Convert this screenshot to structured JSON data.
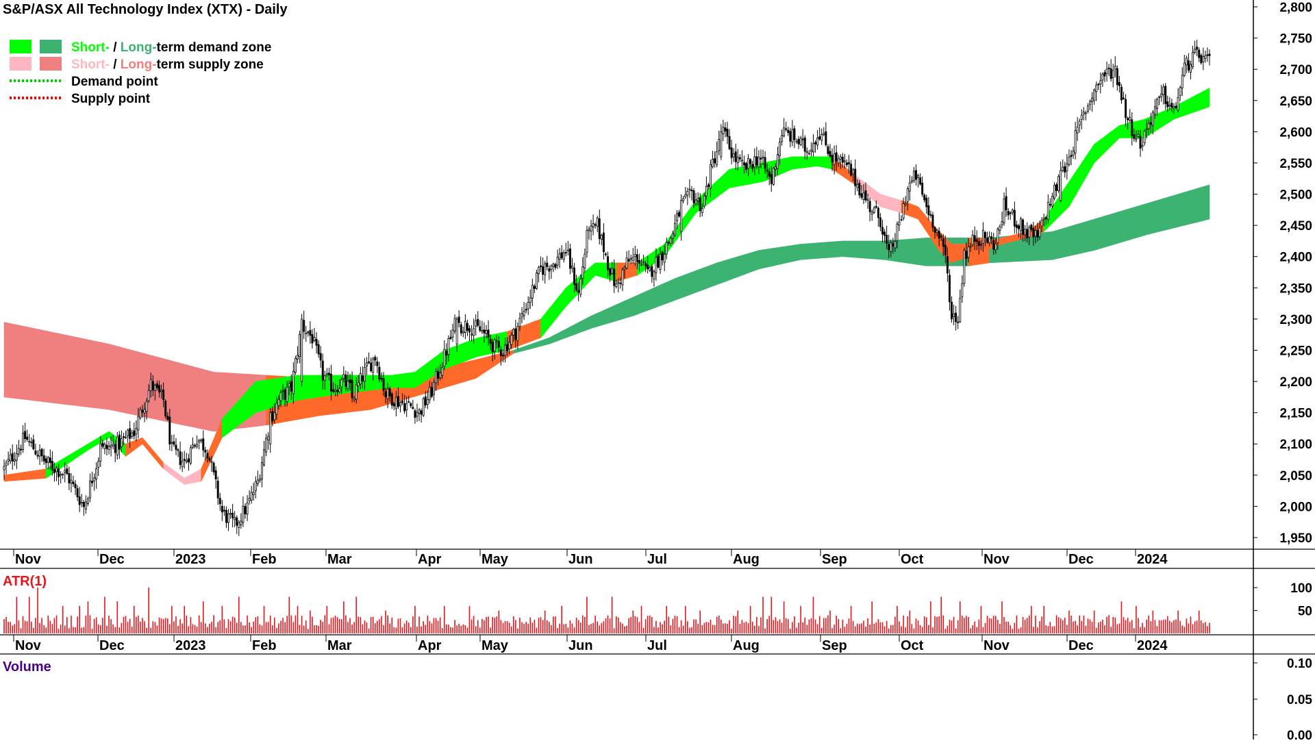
{
  "title": "S&P/ASX All Technology Index (XTX) - Daily",
  "legend": [
    {
      "label_a": "Short-",
      "sep": " / ",
      "label_b": "Long-",
      "rest": "term demand zone",
      "color_a": "#00ff00",
      "color_b": "#3cb371",
      "style": "swatch"
    },
    {
      "label_a": "Short-",
      "sep": " / ",
      "label_b": "Long-",
      "rest": "term supply zone",
      "color_a": "#ffb6c1",
      "color_b": "#f08080",
      "style": "swatch"
    },
    {
      "label": "Demand point",
      "color": "#00cc00",
      "style": "dotted"
    },
    {
      "label": "Supply point",
      "color": "#ff0000",
      "style": "dotted"
    }
  ],
  "colors": {
    "short_demand": "#00ff00",
    "long_demand": "#3cb371",
    "short_supply": "#ffb6c1",
    "long_supply": "#f08080",
    "overlap": "#ff6a2a",
    "atr": "#e8141a",
    "volume_label": "#4b0082",
    "atr_label": "#e8141a"
  },
  "chart_data": [
    {
      "type": "candlestick",
      "title": "S&P/ASX All Technology Index (XTX) - Daily",
      "x_ticks": [
        "Nov",
        "Dec",
        "2023",
        "Feb",
        "Mar",
        "Apr",
        "May",
        "Jun",
        "Jul",
        "Aug",
        "Sep",
        "Oct",
        "Nov",
        "Dec",
        "2024"
      ],
      "y_ticks": [
        1950,
        2000,
        2050,
        2100,
        2150,
        2200,
        2250,
        2300,
        2350,
        2400,
        2450,
        2500,
        2550,
        2600,
        2650,
        2700,
        2750,
        2800
      ],
      "y_tick_labels": [
        "1,950",
        "2,000",
        "2,050",
        "2,100",
        "2,150",
        "2,200",
        "2,250",
        "2,300",
        "2,350",
        "2,400",
        "2,450",
        "2,500",
        "2,550",
        "2,600",
        "2,650",
        "2,700",
        "2,750",
        "2,800"
      ],
      "ylim": [
        1930,
        2820
      ],
      "close_path": [
        [
          0,
          2060
        ],
        [
          10,
          2110
        ],
        [
          20,
          2070
        ],
        [
          30,
          2050
        ],
        [
          38,
          2000
        ],
        [
          46,
          2090
        ],
        [
          55,
          2100
        ],
        [
          62,
          2120
        ],
        [
          70,
          2195
        ],
        [
          76,
          2170
        ],
        [
          80,
          2090
        ],
        [
          86,
          2070
        ],
        [
          92,
          2110
        ],
        [
          97,
          2090
        ],
        [
          104,
          1990
        ],
        [
          110,
          1970
        ],
        [
          116,
          2000
        ],
        [
          121,
          2040
        ],
        [
          127,
          2140
        ],
        [
          131,
          2170
        ],
        [
          137,
          2190
        ],
        [
          142,
          2290
        ],
        [
          147,
          2270
        ],
        [
          152,
          2210
        ],
        [
          157,
          2190
        ],
        [
          162,
          2200
        ],
        [
          167,
          2180
        ],
        [
          172,
          2215
        ],
        [
          177,
          2240
        ],
        [
          182,
          2180
        ],
        [
          187,
          2170
        ],
        [
          194,
          2160
        ],
        [
          198,
          2150
        ],
        [
          204,
          2185
        ],
        [
          210,
          2240
        ],
        [
          215,
          2290
        ],
        [
          222,
          2290
        ],
        [
          228,
          2280
        ],
        [
          234,
          2255
        ],
        [
          238,
          2250
        ],
        [
          244,
          2280
        ],
        [
          250,
          2330
        ],
        [
          256,
          2380
        ],
        [
          262,
          2390
        ],
        [
          268,
          2410
        ],
        [
          274,
          2340
        ],
        [
          278,
          2430
        ],
        [
          283,
          2450
        ],
        [
          288,
          2390
        ],
        [
          292,
          2350
        ],
        [
          297,
          2390
        ],
        [
          302,
          2400
        ],
        [
          307,
          2370
        ],
        [
          313,
          2400
        ],
        [
          318,
          2430
        ],
        [
          323,
          2480
        ],
        [
          328,
          2500
        ],
        [
          333,
          2480
        ],
        [
          338,
          2550
        ],
        [
          343,
          2600
        ],
        [
          348,
          2560
        ],
        [
          353,
          2540
        ],
        [
          360,
          2560
        ],
        [
          366,
          2520
        ],
        [
          371,
          2600
        ],
        [
          377,
          2590
        ],
        [
          383,
          2570
        ],
        [
          389,
          2600
        ],
        [
          395,
          2560
        ],
        [
          403,
          2540
        ],
        [
          408,
          2510
        ],
        [
          413,
          2480
        ],
        [
          418,
          2460
        ],
        [
          422,
          2400
        ],
        [
          427,
          2450
        ],
        [
          431,
          2510
        ],
        [
          435,
          2530
        ],
        [
          440,
          2480
        ],
        [
          444,
          2450
        ],
        [
          449,
          2400
        ],
        [
          452,
          2310
        ],
        [
          455,
          2300
        ],
        [
          458,
          2400
        ],
        [
          463,
          2430
        ],
        [
          468,
          2430
        ],
        [
          473,
          2420
        ],
        [
          477,
          2480
        ],
        [
          482,
          2460
        ],
        [
          487,
          2440
        ],
        [
          493,
          2430
        ],
        [
          498,
          2480
        ],
        [
          503,
          2520
        ],
        [
          508,
          2560
        ],
        [
          514,
          2620
        ],
        [
          519,
          2660
        ],
        [
          524,
          2690
        ],
        [
          530,
          2700
        ],
        [
          536,
          2620
        ],
        [
          542,
          2580
        ],
        [
          548,
          2630
        ],
        [
          553,
          2660
        ],
        [
          558,
          2630
        ],
        [
          563,
          2700
        ],
        [
          567,
          2720
        ],
        [
          571,
          2720
        ],
        [
          575,
          2710
        ]
      ],
      "total_bars": 576,
      "short_zone": [
        [
          0,
          2040,
          2050,
          "o"
        ],
        [
          20,
          2045,
          2060,
          "g"
        ],
        [
          40,
          2090,
          2100,
          "g"
        ],
        [
          50,
          2110,
          2120,
          "g"
        ],
        [
          58,
          2080,
          2100,
          "o"
        ],
        [
          66,
          2100,
          2110,
          "o"
        ],
        [
          76,
          2060,
          2070,
          "p"
        ],
        [
          86,
          2035,
          2045,
          "p"
        ],
        [
          94,
          2040,
          2060,
          "o"
        ],
        [
          104,
          2110,
          2140,
          "g"
        ],
        [
          120,
          2150,
          2200,
          "g"
        ],
        [
          140,
          2170,
          2210,
          "g"
        ],
        [
          160,
          2180,
          2210,
          "g"
        ],
        [
          185,
          2190,
          2210,
          "g"
        ],
        [
          196,
          2190,
          2215,
          "g"
        ],
        [
          210,
          2220,
          2250,
          "g"
        ],
        [
          226,
          2240,
          2270,
          "g"
        ],
        [
          240,
          2250,
          2280,
          "o"
        ],
        [
          256,
          2270,
          2300,
          "g"
        ],
        [
          268,
          2320,
          2350,
          "g"
        ],
        [
          282,
          2370,
          2390,
          "g"
        ],
        [
          292,
          2360,
          2390,
          "o"
        ],
        [
          302,
          2370,
          2390,
          "g"
        ],
        [
          315,
          2400,
          2420,
          "g"
        ],
        [
          330,
          2470,
          2490,
          "g"
        ],
        [
          346,
          2510,
          2540,
          "g"
        ],
        [
          362,
          2520,
          2550,
          "g"
        ],
        [
          376,
          2540,
          2560,
          "g"
        ],
        [
          388,
          2545,
          2560,
          "g"
        ],
        [
          395,
          2540,
          2560,
          "o"
        ],
        [
          406,
          2515,
          2530,
          "p"
        ],
        [
          418,
          2480,
          2500,
          "p"
        ],
        [
          428,
          2470,
          2490,
          "o"
        ],
        [
          436,
          2460,
          2480,
          "o"
        ],
        [
          446,
          2410,
          2440,
          "o"
        ],
        [
          452,
          2390,
          2420,
          "o"
        ],
        [
          460,
          2400,
          2420,
          "o"
        ],
        [
          476,
          2420,
          2430,
          "o"
        ],
        [
          488,
          2430,
          2440,
          "o"
        ],
        [
          496,
          2440,
          2460,
          "g"
        ],
        [
          508,
          2480,
          2520,
          "g"
        ],
        [
          520,
          2550,
          2580,
          "g"
        ],
        [
          532,
          2590,
          2610,
          "g"
        ],
        [
          544,
          2590,
          2620,
          "g"
        ],
        [
          558,
          2620,
          2640,
          "g"
        ],
        [
          575,
          2640,
          2670,
          "g"
        ]
      ],
      "long_zone": [
        [
          0,
          2175,
          2295,
          "p"
        ],
        [
          50,
          2155,
          2260,
          "p"
        ],
        [
          100,
          2120,
          2215,
          "p"
        ],
        [
          125,
          2130,
          2210,
          "o"
        ],
        [
          150,
          2145,
          2205,
          "o"
        ],
        [
          175,
          2155,
          2205,
          "o"
        ],
        [
          200,
          2180,
          2215,
          "o"
        ],
        [
          225,
          2205,
          2235,
          "o"
        ],
        [
          243,
          2245,
          2250,
          "g"
        ],
        [
          260,
          2260,
          2270,
          "g"
        ],
        [
          280,
          2285,
          2305,
          "g"
        ],
        [
          300,
          2305,
          2335,
          "g"
        ],
        [
          320,
          2330,
          2365,
          "g"
        ],
        [
          340,
          2355,
          2390,
          "g"
        ],
        [
          360,
          2380,
          2410,
          "g"
        ],
        [
          380,
          2395,
          2420,
          "g"
        ],
        [
          400,
          2400,
          2425,
          "g"
        ],
        [
          420,
          2395,
          2425,
          "g"
        ],
        [
          440,
          2385,
          2430,
          "g"
        ],
        [
          460,
          2385,
          2430,
          "o"
        ],
        [
          470,
          2390,
          2430,
          "g"
        ],
        [
          500,
          2395,
          2440,
          "g"
        ],
        [
          520,
          2410,
          2460,
          "g"
        ],
        [
          545,
          2435,
          2485,
          "g"
        ],
        [
          575,
          2460,
          2515,
          "g"
        ]
      ],
      "big_moves": [
        [
          46,
          2170,
          "u"
        ],
        [
          127,
          2100,
          "u"
        ],
        [
          142,
          2200,
          "u"
        ],
        [
          166,
          2180,
          "d"
        ],
        [
          216,
          2260,
          "u"
        ],
        [
          279,
          2480,
          "u"
        ],
        [
          288,
          2380,
          "d"
        ],
        [
          323,
          2440,
          "u"
        ],
        [
          342,
          2560,
          "u"
        ],
        [
          452,
          2300,
          "d"
        ],
        [
          458,
          2370,
          "u"
        ],
        [
          504,
          2490,
          "u"
        ],
        [
          535,
          2620,
          "d"
        ],
        [
          563,
          2690,
          "u"
        ]
      ]
    },
    {
      "type": "bar",
      "title": "ATR(1)",
      "y_ticks": [
        50,
        100
      ],
      "ylim": [
        0,
        130
      ],
      "spikes": [
        [
          6,
          80
        ],
        [
          12,
          80
        ],
        [
          16,
          100
        ],
        [
          28,
          60
        ],
        [
          36,
          60
        ],
        [
          40,
          70
        ],
        [
          48,
          80
        ],
        [
          54,
          70
        ],
        [
          62,
          60
        ],
        [
          69,
          100
        ],
        [
          80,
          60
        ],
        [
          86,
          60
        ],
        [
          95,
          70
        ],
        [
          104,
          60
        ],
        [
          112,
          80
        ],
        [
          124,
          60
        ],
        [
          136,
          80
        ],
        [
          140,
          60
        ],
        [
          146,
          50
        ],
        [
          154,
          60
        ],
        [
          162,
          70
        ],
        [
          168,
          80
        ],
        [
          182,
          50
        ],
        [
          196,
          60
        ],
        [
          210,
          60
        ],
        [
          222,
          60
        ],
        [
          236,
          50
        ],
        [
          258,
          50
        ],
        [
          266,
          60
        ],
        [
          278,
          80
        ],
        [
          290,
          80
        ],
        [
          300,
          50
        ],
        [
          304,
          60
        ],
        [
          316,
          60
        ],
        [
          325,
          60
        ],
        [
          332,
          50
        ],
        [
          350,
          50
        ],
        [
          356,
          60
        ],
        [
          362,
          80
        ],
        [
          366,
          80
        ],
        [
          372,
          70
        ],
        [
          380,
          60
        ],
        [
          386,
          80
        ],
        [
          394,
          50
        ],
        [
          404,
          60
        ],
        [
          414,
          70
        ],
        [
          426,
          60
        ],
        [
          432,
          50
        ],
        [
          442,
          70
        ],
        [
          447,
          80
        ],
        [
          456,
          70
        ],
        [
          466,
          60
        ],
        [
          476,
          70
        ],
        [
          490,
          60
        ],
        [
          496,
          60
        ],
        [
          508,
          50
        ],
        [
          520,
          50
        ],
        [
          533,
          70
        ],
        [
          540,
          60
        ],
        [
          548,
          50
        ],
        [
          560,
          50
        ],
        [
          570,
          50
        ]
      ]
    },
    {
      "type": "bar",
      "title": "Volume",
      "y_ticks": [
        0,
        0.05,
        0.1
      ],
      "y_tick_labels": [
        "0.00",
        "0.05",
        "0.10"
      ],
      "ylim": [
        0,
        0.1
      ],
      "values": []
    }
  ]
}
